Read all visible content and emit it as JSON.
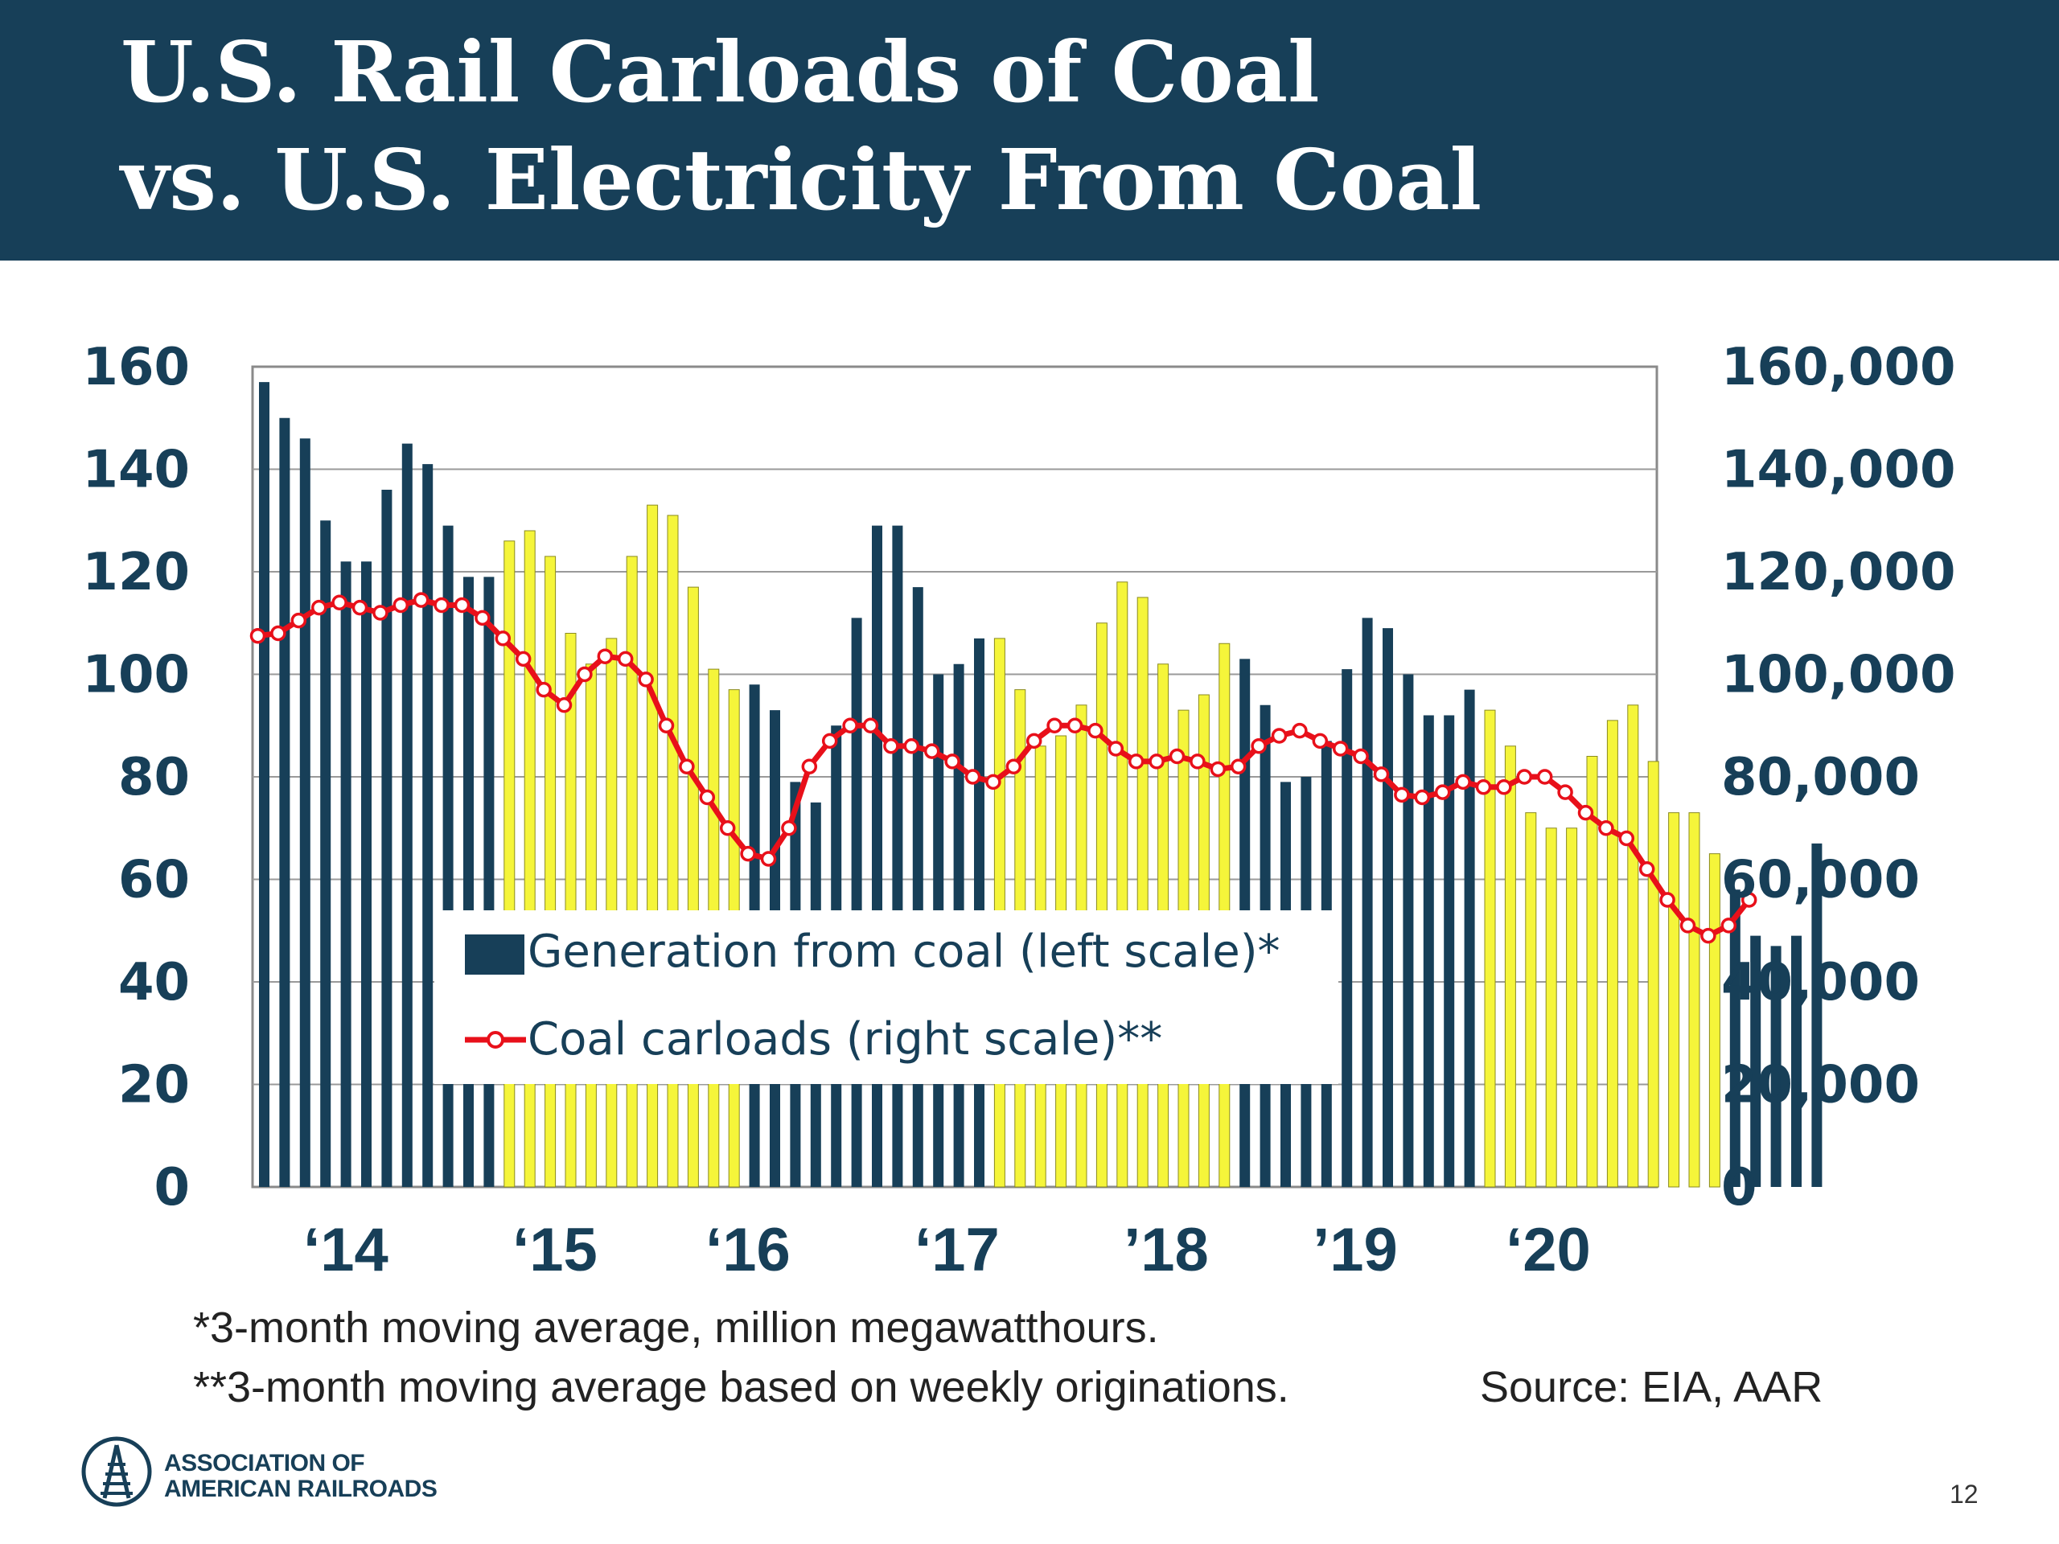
{
  "slide": {
    "title_line1": "U.S. Rail Carloads of Coal",
    "title_line2": "vs. U.S. Electricity From Coal",
    "footnote1": "*3-month moving average, million megawatthours.",
    "footnote2": "**3-month moving average based on weekly originations.",
    "source": "Source: EIA, AAR",
    "logo_line1": "ASSOCIATION OF",
    "logo_line2": "AMERICAN RAILROADS",
    "page_number": "12"
  },
  "colors": {
    "header_bg": "#173f58",
    "bar_navy": "#173f58",
    "bar_yellow": "#f5f53a",
    "line_red": "#e8101a",
    "axis_text": "#173f58"
  },
  "chart_data": {
    "type": "bar",
    "categories_note_free": true,
    "x_labels": [
      "‘14",
      "‘15",
      "‘16",
      "‘17",
      "’18",
      "’19",
      "‘20"
    ],
    "left_axis": {
      "ticks": [
        "160",
        "140",
        "120",
        "100",
        "80",
        "60",
        "40",
        "20",
        "0"
      ],
      "ylim": [
        0,
        160
      ]
    },
    "right_axis": {
      "ticks": [
        "160,000",
        "140,000",
        "120,000",
        "100,000",
        "80,000",
        "60,000",
        "40,000",
        "20,000",
        "0"
      ],
      "ylim": [
        0,
        160000
      ]
    },
    "grid": true,
    "legend_position": "bottom-center",
    "series": [
      {
        "name": "Generation from coal (left scale)*",
        "axis": "left",
        "kind": "bar",
        "start": "2014-01",
        "values": [
          157,
          150,
          146,
          130,
          122,
          122,
          136,
          145,
          141,
          129,
          119,
          119,
          126,
          128,
          123,
          108,
          102,
          107,
          123,
          133,
          131,
          117,
          101,
          97,
          98,
          93,
          79,
          75,
          90,
          111,
          129,
          129,
          117,
          100,
          102,
          107,
          107,
          97,
          86,
          88,
          94,
          110,
          118,
          115,
          102,
          93,
          96,
          106,
          103,
          94,
          79,
          80,
          87,
          101,
          111,
          109,
          100,
          92,
          92,
          97,
          93,
          86,
          73,
          70,
          70,
          84,
          91,
          94,
          83,
          73,
          73,
          65,
          58,
          49,
          47,
          49,
          67
        ]
      },
      {
        "name": "Coal carloads (right scale)**",
        "axis": "right",
        "kind": "line",
        "values": [
          107500,
          108000,
          110500,
          113000,
          114000,
          113000,
          112000,
          113500,
          114500,
          113500,
          113500,
          111000,
          107000,
          103000,
          97000,
          94000,
          100000,
          103500,
          103000,
          99000,
          90000,
          82000,
          76000,
          70000,
          65000,
          64000,
          70000,
          82000,
          87000,
          90000,
          90000,
          86000,
          86000,
          85000,
          83000,
          80000,
          79000,
          82000,
          87000,
          90000,
          90000,
          89000,
          85500,
          83000,
          83000,
          84000,
          83000,
          81500,
          82000,
          86000,
          88000,
          89000,
          87000,
          85500,
          84000,
          80500,
          76500,
          76000,
          77000,
          79000,
          78000,
          78000,
          80000,
          80000,
          77000,
          73000,
          70000,
          68000,
          62000,
          56000,
          51000,
          49000,
          51000,
          56000
        ]
      }
    ]
  }
}
